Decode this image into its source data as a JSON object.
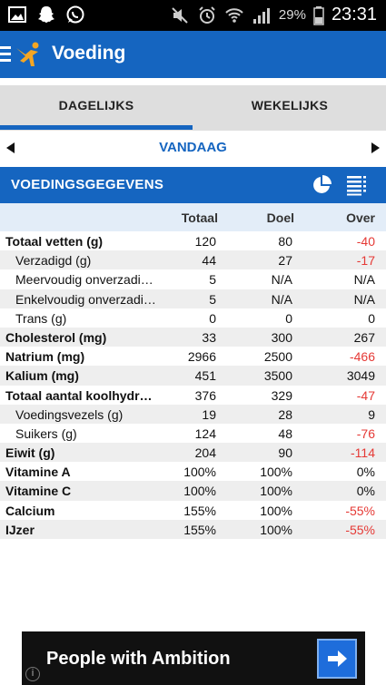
{
  "status_bar": {
    "battery_percent": "29%",
    "time": "23:31",
    "icons_left": [
      "gallery-icon",
      "snapchat-icon",
      "whatsapp-icon"
    ],
    "icons_right": [
      "mute-icon",
      "alarm-icon",
      "wifi-icon",
      "signal-icon",
      "battery-icon"
    ]
  },
  "app_bar": {
    "title": "Voeding",
    "color": "#1565c0"
  },
  "tabs": {
    "daily": "DAGELIJKS",
    "weekly": "WEKELIJKS",
    "active": "daily"
  },
  "date_nav": {
    "label": "VANDAAG"
  },
  "section": {
    "title": "VOEDINGSGEGEVENS"
  },
  "table": {
    "headers": {
      "total": "Totaal",
      "goal": "Doel",
      "over": "Over"
    },
    "rows": [
      {
        "label": "Totaal vetten (g)",
        "total": "120",
        "goal": "80",
        "over": "-40",
        "main": true,
        "negative": true
      },
      {
        "label": "Verzadigd (g)",
        "total": "44",
        "goal": "27",
        "over": "-17",
        "main": false,
        "negative": true
      },
      {
        "label": "Meervoudig onverzadi…",
        "total": "5",
        "goal": "N/A",
        "over": "N/A",
        "main": false,
        "negative": false
      },
      {
        "label": "Enkelvoudig onverzadi…",
        "total": "5",
        "goal": "N/A",
        "over": "N/A",
        "main": false,
        "negative": false
      },
      {
        "label": "Trans (g)",
        "total": "0",
        "goal": "0",
        "over": "0",
        "main": false,
        "negative": false
      },
      {
        "label": "Cholesterol (mg)",
        "total": "33",
        "goal": "300",
        "over": "267",
        "main": true,
        "negative": false
      },
      {
        "label": "Natrium (mg)",
        "total": "2966",
        "goal": "2500",
        "over": "-466",
        "main": true,
        "negative": true
      },
      {
        "label": "Kalium (mg)",
        "total": "451",
        "goal": "3500",
        "over": "3049",
        "main": true,
        "negative": false
      },
      {
        "label": "Totaal aantal koolhydrat…",
        "total": "376",
        "goal": "329",
        "over": "-47",
        "main": true,
        "negative": true
      },
      {
        "label": "Voedingsvezels (g)",
        "total": "19",
        "goal": "28",
        "over": "9",
        "main": false,
        "negative": false
      },
      {
        "label": "Suikers (g)",
        "total": "124",
        "goal": "48",
        "over": "-76",
        "main": false,
        "negative": true
      },
      {
        "label": "Eiwit (g)",
        "total": "204",
        "goal": "90",
        "over": "-114",
        "main": true,
        "negative": true
      },
      {
        "label": "Vitamine A",
        "total": "100%",
        "goal": "100%",
        "over": "0%",
        "main": true,
        "negative": false
      },
      {
        "label": "Vitamine C",
        "total": "100%",
        "goal": "100%",
        "over": "0%",
        "main": true,
        "negative": false
      },
      {
        "label": "Calcium",
        "total": "155%",
        "goal": "100%",
        "over": "-55%",
        "main": true,
        "negative": true
      },
      {
        "label": "IJzer",
        "total": "155%",
        "goal": "100%",
        "over": "-55%",
        "main": true,
        "negative": true
      }
    ]
  },
  "ad": {
    "text": "People with Ambition"
  },
  "colors": {
    "accent": "#1565c0",
    "negative": "#e53935",
    "header_row": "#e3edf8"
  }
}
